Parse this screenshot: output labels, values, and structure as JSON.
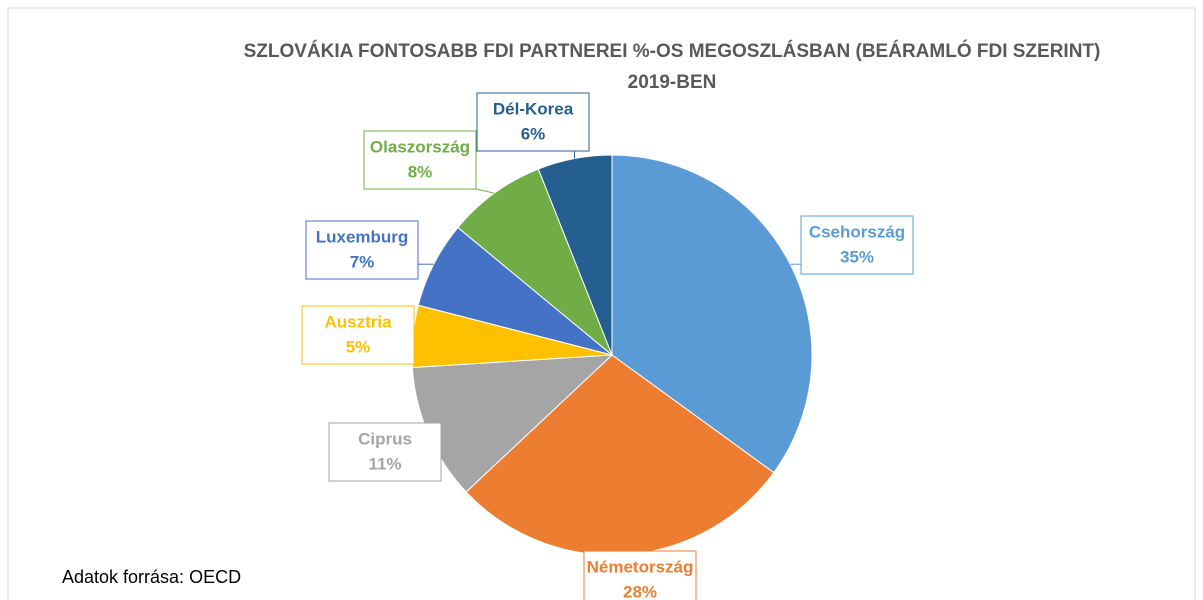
{
  "chart_data": {
    "type": "pie",
    "title": "SZLOVÁKIA FONTOSABB FDI PARTNEREI %-OS MEGOSZLÁSBAN (BEÁRAMLÓ FDI SZERINT) 2019-BEN",
    "categories": [
      "Csehország",
      "Németország",
      "Ciprus",
      "Ausztria",
      "Luxemburg",
      "Olaszország",
      "Dél-Korea"
    ],
    "values": [
      35,
      28,
      11,
      5,
      7,
      8,
      6
    ],
    "value_labels": [
      "35%",
      "28%",
      "11%",
      "5%",
      "7%",
      "8%",
      "6%"
    ],
    "colors": [
      "#5b9bd5",
      "#ed7d31",
      "#a5a5a5",
      "#ffc000",
      "#4472c4",
      "#70ad47",
      "#255e91"
    ],
    "note": "Adatok forrása: OECD"
  }
}
